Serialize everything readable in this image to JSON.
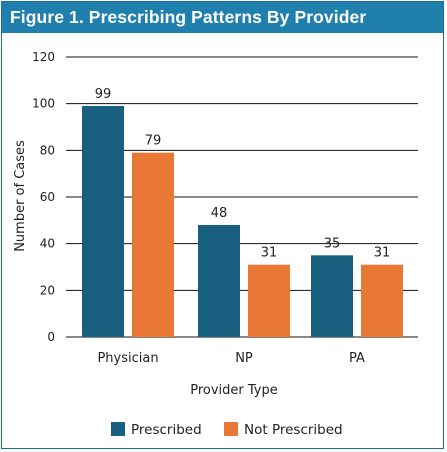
{
  "figure": {
    "title": "Figure 1. Prescribing Patterns By Provider"
  },
  "chart_data": {
    "type": "bar",
    "title": "Figure 1. Prescribing Patterns By Provider",
    "categories": [
      "Physician",
      "NP",
      "PA"
    ],
    "series": [
      {
        "name": "Prescribed",
        "values": [
          99,
          48,
          35
        ],
        "color": "#185f80"
      },
      {
        "name": "Not Prescribed",
        "values": [
          79,
          31,
          31
        ],
        "color": "#e97836"
      }
    ],
    "xlabel": "Provider Type",
    "ylabel": "Number of Cases",
    "ylim": [
      0,
      120
    ],
    "yticks": [
      "0",
      "20",
      "40",
      "60",
      "80",
      "100",
      "120"
    ],
    "grid": true,
    "legend": "bottom-center"
  }
}
